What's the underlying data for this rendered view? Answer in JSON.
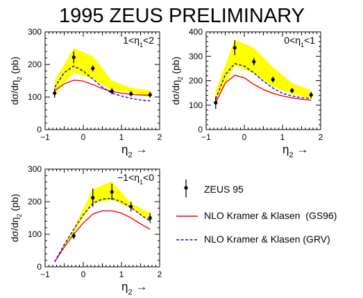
{
  "title": "1995 ZEUS PRELIMINARY",
  "legend": [
    {
      "key": "zeus",
      "label": "ZEUS 95",
      "color": "#000000",
      "style": "points"
    },
    {
      "key": "gs96",
      "label": "NLO Kramer & Klasen  (GS96)",
      "color": "#ff0000",
      "style": "solid"
    },
    {
      "key": "grv",
      "label": "NLO Kramer & Klasen (GRV)",
      "color": "#0000ff",
      "style": "dashed"
    }
  ],
  "colors": {
    "band": "#ffff00",
    "data": "#000000",
    "gs96": "#ff0000",
    "grv": "#0000ff"
  },
  "chart_data": [
    {
      "type": "line",
      "panel": "top-left",
      "annotation": {
        "lo": "1",
        "hi": "2",
        "var": "η",
        "sub": "1"
      },
      "xlabel": {
        "var": "η",
        "sub": "2",
        "arrow": "→"
      },
      "ylabel": {
        "pre": "dσ/dη",
        "sub": "2",
        "post": " (pb)"
      },
      "xlim": [
        -1,
        2
      ],
      "ylim": [
        0,
        300
      ],
      "xticks": [
        -1,
        0,
        1,
        2
      ],
      "yticks": [
        0,
        100,
        200,
        300
      ],
      "data": {
        "x": [
          -0.75,
          -0.25,
          0.25,
          0.75,
          1.25,
          1.75
        ],
        "y": [
          112,
          222,
          188,
          118,
          110,
          107
        ],
        "err": [
          14,
          18,
          9,
          10,
          8,
          9
        ]
      },
      "band": {
        "x": [
          -0.75,
          -0.25,
          0.25,
          0.75,
          1.25,
          1.75
        ],
        "lo": [
          110,
          175,
          155,
          120,
          115,
          98
        ],
        "hi": [
          150,
          250,
          225,
          150,
          128,
          120
        ]
      },
      "series": [
        {
          "key": "gs96",
          "x": [
            -0.75,
            -0.5,
            -0.25,
            0.0,
            0.25,
            0.5,
            0.75,
            1.0,
            1.25,
            1.5,
            1.75
          ],
          "y": [
            120,
            140,
            152,
            149,
            138,
            126,
            117,
            112,
            108,
            106,
            106
          ]
        },
        {
          "key": "grv",
          "x": [
            -0.75,
            -0.5,
            -0.25,
            0.0,
            0.25,
            0.5,
            0.75,
            1.0,
            1.25,
            1.5,
            1.75
          ],
          "y": [
            130,
            175,
            195,
            180,
            155,
            130,
            112,
            103,
            96,
            91,
            88
          ]
        }
      ]
    },
    {
      "type": "line",
      "panel": "top-right",
      "annotation": {
        "lo": "0",
        "hi": "1",
        "var": "η",
        "sub": "1"
      },
      "xlabel": {
        "var": "η",
        "sub": "2",
        "arrow": "→"
      },
      "ylabel": {
        "pre": "dσ/dη",
        "sub": "2",
        "post": " (pb)"
      },
      "xlim": [
        -1,
        2
      ],
      "ylim": [
        0,
        400
      ],
      "xticks": [
        -1,
        0,
        1,
        2
      ],
      "yticks": [
        0,
        100,
        200,
        300,
        400
      ],
      "data": {
        "x": [
          -0.75,
          -0.25,
          0.25,
          0.75,
          1.25,
          1.75
        ],
        "y": [
          110,
          335,
          278,
          205,
          160,
          142
        ],
        "err": [
          25,
          30,
          15,
          12,
          10,
          12
        ]
      },
      "band": {
        "x": [
          -0.75,
          -0.25,
          0.25,
          0.75,
          1.25,
          1.75
        ],
        "lo": [
          115,
          260,
          230,
          175,
          145,
          125
        ],
        "hi": [
          160,
          368,
          335,
          255,
          190,
          160
        ]
      },
      "series": [
        {
          "key": "gs96",
          "x": [
            -0.75,
            -0.5,
            -0.25,
            0.0,
            0.25,
            0.5,
            0.75,
            1.0,
            1.25,
            1.5,
            1.75
          ],
          "y": [
            110,
            190,
            222,
            212,
            185,
            164,
            148,
            138,
            130,
            124,
            120
          ]
        },
        {
          "key": "grv",
          "x": [
            -0.75,
            -0.5,
            -0.25,
            0.0,
            0.25,
            0.5,
            0.75,
            1.0,
            1.25,
            1.5,
            1.75
          ],
          "y": [
            125,
            225,
            270,
            260,
            232,
            198,
            170,
            148,
            138,
            130,
            127
          ]
        }
      ]
    },
    {
      "type": "line",
      "panel": "bottom-left",
      "annotation": {
        "lo": "−1",
        "hi": "0",
        "var": "η",
        "sub": "1"
      },
      "xlabel": {
        "var": "η",
        "sub": "2",
        "arrow": "→"
      },
      "ylabel": {
        "pre": "dσ/dη",
        "sub": "2",
        "post": " (pb)"
      },
      "xlim": [
        -1,
        2
      ],
      "ylim": [
        0,
        300
      ],
      "xticks": [
        -1,
        0,
        1,
        2
      ],
      "yticks": [
        0,
        100,
        200,
        300
      ],
      "data": {
        "x": [
          -0.25,
          0.25,
          0.75,
          1.25,
          1.75
        ],
        "y": [
          95,
          212,
          230,
          185,
          150
        ],
        "err": [
          10,
          28,
          25,
          15,
          15
        ]
      },
      "band": {
        "x": [
          -0.75,
          -0.25,
          0.25,
          0.75,
          1.25,
          1.75
        ],
        "lo": [
          15,
          105,
          195,
          205,
          180,
          140
        ],
        "hi": [
          20,
          120,
          238,
          262,
          195,
          165
        ]
      },
      "series": [
        {
          "key": "gs96",
          "x": [
            -0.75,
            -0.5,
            -0.25,
            0.0,
            0.25,
            0.5,
            0.75,
            1.0,
            1.25,
            1.5,
            1.75
          ],
          "y": [
            15,
            60,
            100,
            135,
            162,
            172,
            172,
            165,
            150,
            132,
            115
          ]
        },
        {
          "key": "grv",
          "x": [
            -0.75,
            -0.5,
            -0.25,
            0.0,
            0.25,
            0.5,
            0.75,
            1.0,
            1.25,
            1.5,
            1.75
          ],
          "y": [
            15,
            68,
            115,
            160,
            195,
            208,
            210,
            200,
            182,
            160,
            140
          ]
        }
      ]
    }
  ]
}
